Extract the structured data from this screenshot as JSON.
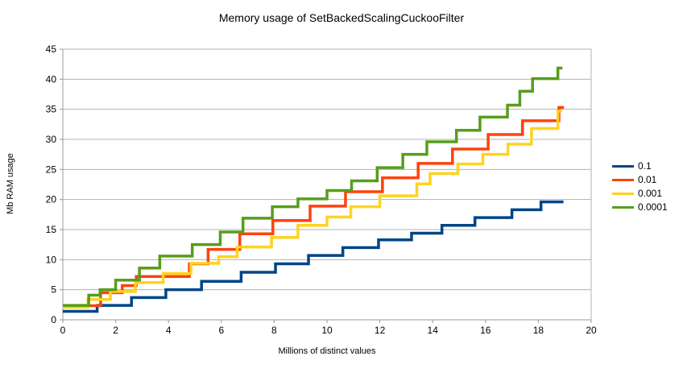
{
  "chart_data": {
    "type": "line",
    "step": true,
    "title": "Memory usage of SetBackedScalingCuckooFilter",
    "xlabel": "Millions of distinct values",
    "ylabel": "Mb RAM usage",
    "xlim": [
      0,
      20
    ],
    "ylim": [
      0,
      45
    ],
    "xticks": [
      0,
      2,
      4,
      6,
      8,
      10,
      12,
      14,
      16,
      18,
      20
    ],
    "yticks": [
      0,
      5,
      10,
      15,
      20,
      25,
      30,
      35,
      40,
      45
    ],
    "grid": "horizontal-and-border",
    "legend_position": "right",
    "series": [
      {
        "name": "0.1",
        "color": "#004586",
        "x": [
          0,
          1.3,
          2.6,
          3.9,
          5.25,
          6.75,
          8.05,
          9.3,
          10.6,
          11.95,
          13.2,
          14.35,
          15.6,
          17.0,
          18.1
        ],
        "y": [
          1.4,
          2.4,
          3.7,
          5.0,
          6.4,
          7.9,
          9.3,
          10.7,
          12.0,
          13.3,
          14.4,
          15.7,
          17.0,
          18.3,
          19.6
        ],
        "x_end": 18.95
      },
      {
        "name": "0.01",
        "color": "#ff420e",
        "x": [
          0,
          1.43,
          2.25,
          2.78,
          4.79,
          5.5,
          6.7,
          7.95,
          9.36,
          10.7,
          12.1,
          13.45,
          14.75,
          16.1,
          17.4,
          18.78
        ],
        "y": [
          2.35,
          4.5,
          5.7,
          7.2,
          9.3,
          11.7,
          14.3,
          16.5,
          18.9,
          21.3,
          23.6,
          26.0,
          28.4,
          30.8,
          33.1,
          35.3
        ],
        "x_end": 18.97
      },
      {
        "name": "0.001",
        "color": "#ffd320",
        "x": [
          0,
          0.95,
          1.8,
          2.75,
          3.8,
          4.85,
          5.9,
          6.6,
          7.9,
          8.9,
          10.0,
          10.9,
          12.0,
          13.4,
          13.9,
          14.95,
          15.9,
          16.85,
          17.74,
          18.74
        ],
        "y": [
          2.1,
          3.4,
          4.7,
          6.2,
          7.7,
          9.4,
          10.5,
          12.1,
          13.7,
          15.7,
          17.1,
          18.8,
          20.6,
          22.6,
          24.3,
          25.9,
          27.5,
          29.2,
          31.8,
          34.7
        ],
        "x_end": 18.9
      },
      {
        "name": "0.0001",
        "color": "#579d1c",
        "x": [
          0,
          0.98,
          1.41,
          2.0,
          2.9,
          3.67,
          4.9,
          5.96,
          6.82,
          7.93,
          8.9,
          10.0,
          10.93,
          11.9,
          12.87,
          13.78,
          14.9,
          15.79,
          16.83,
          17.3,
          17.78,
          18.74
        ],
        "y": [
          2.4,
          4.1,
          5.0,
          6.6,
          8.6,
          10.6,
          12.5,
          14.6,
          16.9,
          18.8,
          20.1,
          21.5,
          23.1,
          25.3,
          27.5,
          29.6,
          31.5,
          33.7,
          35.7,
          38.0,
          40.1,
          41.85
        ],
        "x_end": 18.91
      }
    ]
  },
  "colors": {
    "grid": "#b3b3b3",
    "axis": "#999999",
    "tick_text": "#000000",
    "background": "#ffffff"
  }
}
